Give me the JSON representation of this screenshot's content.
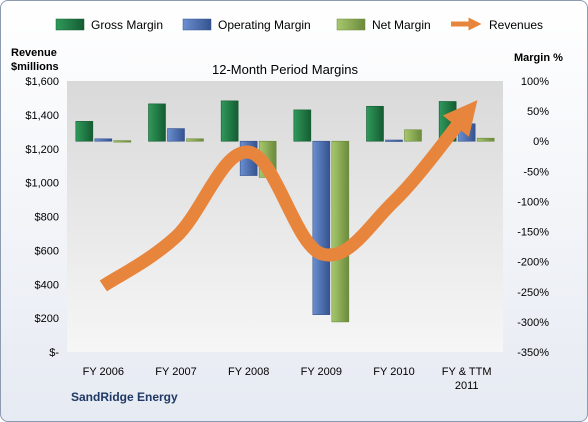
{
  "chart_data": {
    "type": "bar",
    "title": "12-Month Period Margins",
    "footer": "SandRidge Energy",
    "left_axis_label_line1": "Revenue",
    "left_axis_label_line2": "$millions",
    "right_axis_label": "Margin %",
    "categories_line1": [
      "FY 2006",
      "FY 2007",
      "FY 2008",
      "FY 2009",
      "FY 2010",
      "FY & TTM"
    ],
    "categories_line2": [
      "",
      "",
      "",
      "",
      "",
      "2011"
    ],
    "left_ticks": [
      "$-",
      "$200",
      "$400",
      "$600",
      "$800",
      "$1,000",
      "$1,200",
      "$1,400",
      "$1,600"
    ],
    "left_ylim": [
      0,
      1600
    ],
    "right_ticks": [
      "-350%",
      "-300%",
      "-250%",
      "-200%",
      "-150%",
      "-100%",
      "-50%",
      "0%",
      "50%",
      "100%"
    ],
    "right_ylim": [
      -350,
      100
    ],
    "series": [
      {
        "name": "Gross Margin",
        "type": "bar",
        "axis": "right",
        "color": "#1e7a45",
        "values": [
          33,
          62,
          67,
          52,
          58,
          66
        ]
      },
      {
        "name": "Operating Margin",
        "type": "bar",
        "axis": "right",
        "color": "#4a6fb8",
        "values": [
          4,
          21,
          -57,
          -288,
          2,
          29
        ]
      },
      {
        "name": "Net Margin",
        "type": "bar",
        "axis": "right",
        "color": "#8aab54",
        "values": [
          1,
          4,
          -60,
          -300,
          19,
          5
        ]
      },
      {
        "name": "Revenues",
        "type": "line",
        "axis": "left",
        "color": "#e8853c",
        "values": [
          390,
          680,
          1180,
          580,
          890,
          1410
        ]
      }
    ],
    "legend_position": "top",
    "grid": false,
    "plot_background": "#d9d9d9"
  }
}
